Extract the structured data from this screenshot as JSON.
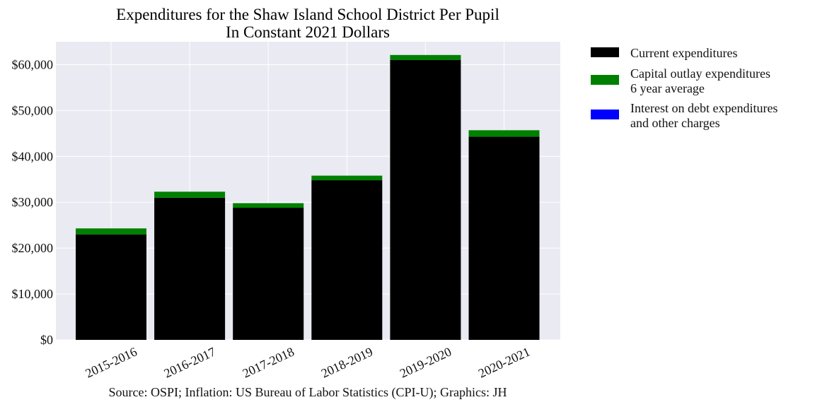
{
  "chart_data": {
    "type": "bar",
    "stacked": true,
    "title": "Expenditures for the Shaw Island School District Per Pupil",
    "subtitle": "In Constant 2021 Dollars",
    "categories": [
      "2015-2016",
      "2016-2017",
      "2017-2018",
      "2018-2019",
      "2019-2020",
      "2020-2021"
    ],
    "series": [
      {
        "name": "Current expenditures",
        "color": "#000000",
        "values": [
          23000,
          31000,
          28800,
          34800,
          61000,
          44300
        ]
      },
      {
        "name": "Capital outlay expenditures\n6 year average",
        "color": "#008000",
        "values": [
          1300,
          1300,
          1000,
          1000,
          1100,
          1400
        ]
      },
      {
        "name": "Interest on debt expenditures\nand other charges",
        "color": "#0000ff",
        "values": [
          0,
          0,
          0,
          0,
          0,
          0
        ]
      }
    ],
    "yticks": [
      0,
      10000,
      20000,
      30000,
      40000,
      50000,
      60000
    ],
    "ytick_labels": [
      "$0",
      "$10,000",
      "$20,000",
      "$30,000",
      "$40,000",
      "$50,000",
      "$60,000"
    ],
    "ylim": [
      0,
      65000
    ],
    "grid": true,
    "legend_position": "outside right",
    "background": "#eaeaf2"
  },
  "source_note": "Source: OSPI; Inflation: US Bureau of Labor Statistics (CPI-U); Graphics: JH"
}
